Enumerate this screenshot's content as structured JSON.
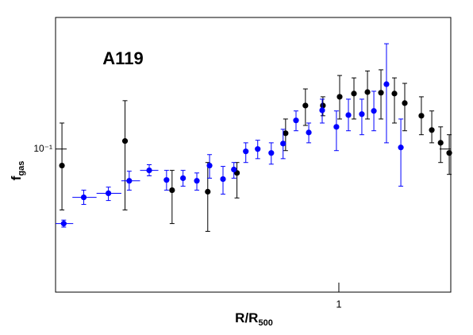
{
  "chart_data": {
    "type": "scatter",
    "annotation": "A119",
    "x_label": {
      "main": "R/R",
      "sub": "500"
    },
    "y_label": {
      "main": "f",
      "sub": "gas"
    },
    "log_x": true,
    "log_y": true,
    "xlim": [
      0.173,
      2.0
    ],
    "ylim": [
      0.058,
      0.165
    ],
    "xticks": [
      1
    ],
    "yticks": [
      {
        "value": 0.1,
        "label": "10⁻¹"
      }
    ],
    "series": [
      {
        "color": "#000000",
        "x": [
          0.18,
          0.266,
          0.356,
          0.444,
          0.532,
          0.719,
          0.813,
          0.906,
          1.005,
          1.098,
          1.194,
          1.298,
          1.411,
          1.504,
          1.667,
          1.778,
          1.878,
          1.981
        ],
        "values": [
          0.0939,
          0.1031,
          0.0855,
          0.085,
          0.0913,
          0.1062,
          0.118,
          0.118,
          0.122,
          0.1235,
          0.1242,
          0.1239,
          0.1235,
          0.1191,
          0.1135,
          0.1075,
          0.1024,
          0.0985
        ],
        "yerr_minus": [
          0.0146,
          0.0238,
          0.0102,
          0.0119,
          0.0083,
          0.0068,
          0.0086,
          0.0045,
          0.0099,
          0.0114,
          0.0121,
          0.0118,
          0.0131,
          0.0119,
          0.0079,
          0.0051,
          0.0074,
          0.0077
        ],
        "yerr_plus": [
          0.0165,
          0.0171,
          0.0067,
          0.01,
          0.0037,
          0.0059,
          0.0077,
          0.004,
          0.0103,
          0.0076,
          0.0104,
          0.0113,
          0.0076,
          0.0093,
          0.0085,
          0.0081,
          0.0064,
          0.0071
        ]
      },
      {
        "color": "#0000ff",
        "x": [
          0.182,
          0.206,
          0.24,
          0.273,
          0.309,
          0.344,
          0.381,
          0.415,
          0.449,
          0.488,
          0.522,
          0.562,
          0.605,
          0.658,
          0.708,
          0.767,
          0.83,
          0.902,
          0.985,
          1.061,
          1.153,
          1.242,
          1.343,
          1.468
        ],
        "xerr_minus": [
          0.009,
          0.014,
          0.017,
          0.013,
          0.017,
          null,
          null,
          null,
          null,
          null,
          null,
          null,
          null,
          null,
          null,
          null,
          null,
          null,
          null,
          null,
          null,
          null,
          null,
          null
        ],
        "xerr_plus": [
          0.011,
          0.017,
          0.02,
          0.019,
          0.018,
          null,
          null,
          null,
          null,
          null,
          null,
          null,
          null,
          null,
          null,
          null,
          null,
          null,
          null,
          null,
          null,
          null,
          null,
          null
        ],
        "values": [
          0.0753,
          0.0832,
          0.0845,
          0.0886,
          0.0922,
          0.0889,
          0.0895,
          0.0886,
          0.0939,
          0.0892,
          0.0925,
          0.0991,
          0.1,
          0.0985,
          0.1021,
          0.1115,
          0.1065,
          0.1159,
          0.1088,
          0.1138,
          0.1142,
          0.1156,
          0.128,
          0.1006
        ],
        "yerr_minus": [
          0.001,
          0.0022,
          0.0023,
          0.0031,
          0.0019,
          0.0034,
          0.0027,
          0.0031,
          0.0044,
          0.005,
          0.003,
          0.0041,
          0.0036,
          0.0041,
          0.0057,
          0.0043,
          0.0041,
          0.0055,
          0.0094,
          0.0066,
          0.0086,
          0.0084,
          0.0256,
          0.0138
        ],
        "yerr_plus": [
          0.001,
          0.0023,
          0.002,
          0.0033,
          0.002,
          0.0033,
          0.0027,
          0.0027,
          0.004,
          0.0044,
          0.0025,
          0.0033,
          0.0034,
          0.0039,
          0.0057,
          0.0041,
          0.0039,
          0.005,
          0.0068,
          0.0071,
          0.0067,
          0.009,
          0.0213,
          0.0115
        ]
      }
    ]
  }
}
